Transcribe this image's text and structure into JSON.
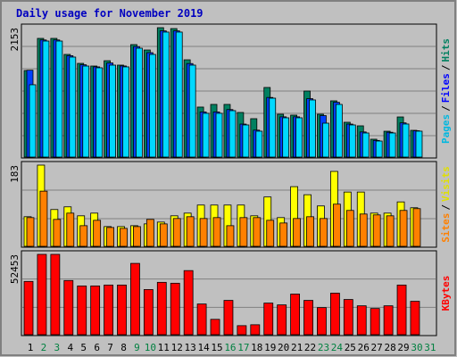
{
  "legend_separator": "/",
  "chart_data": [
    {
      "type": "bar",
      "title": "Daily usage for November 2019",
      "ylim": [
        0,
        2153
      ],
      "yticks": [
        2153
      ],
      "series": [
        {
          "name": "Hits",
          "color": "#008060",
          "text_color": "#008060",
          "values": [
            1445,
            1976,
            1976,
            1711,
            1563,
            1519,
            1607,
            1534,
            1873,
            1784,
            2153,
            2138,
            1622,
            841,
            885,
            885,
            752,
            649,
            1165,
            723,
            708,
            1106,
            723,
            944,
            590,
            531,
            310,
            442,
            678,
            457,
            null
          ]
        },
        {
          "name": "Files",
          "color": "#0040ff",
          "text_color": "#0000ff",
          "values": [
            1450,
            1950,
            1950,
            1690,
            1540,
            1505,
            1570,
            1520,
            1840,
            1740,
            2100,
            2100,
            1560,
            760,
            760,
            800,
            560,
            460,
            1000,
            680,
            680,
            980,
            700,
            920,
            560,
            430,
            290,
            425,
            580,
            450,
            null
          ]
        },
        {
          "name": "Pages",
          "color": "#00d8ff",
          "text_color": "#00b8e0",
          "values": [
            1210,
            1932,
            1932,
            1667,
            1519,
            1490,
            1534,
            1505,
            1814,
            1711,
            2080,
            2080,
            1534,
            738,
            738,
            782,
            546,
            443,
            988,
            664,
            664,
            959,
            575,
            885,
            546,
            413,
            280,
            413,
            561,
            443,
            null
          ]
        }
      ]
    },
    {
      "type": "bar",
      "ylim": [
        0,
        183
      ],
      "yticks": [
        183
      ],
      "series": [
        {
          "name": "Visits",
          "color": "#ffff00",
          "text_color": "#e0e000",
          "values": [
            68,
            183,
            84,
            90,
            70,
            76,
            46,
            46,
            48,
            52,
            56,
            70,
            76,
            94,
            94,
            94,
            94,
            70,
            112,
            66,
            135,
            117,
            92,
            169,
            123,
            123,
            76,
            76,
            101,
            88,
            null
          ]
        },
        {
          "name": "Sites",
          "color": "#ff8000",
          "text_color": "#ff8000",
          "values": [
            66,
            125,
            62,
            76,
            48,
            60,
            44,
            42,
            46,
            62,
            52,
            64,
            68,
            64,
            66,
            48,
            66,
            66,
            60,
            54,
            64,
            68,
            64,
            96,
            82,
            74,
            72,
            70,
            82,
            86,
            null
          ]
        }
      ]
    },
    {
      "type": "bar",
      "ylim": [
        0,
        52453
      ],
      "yticks": [
        52453
      ],
      "categories": [
        "1",
        "2",
        "3",
        "4",
        "5",
        "6",
        "7",
        "8",
        "9",
        "10",
        "11",
        "12",
        "13",
        "14",
        "15",
        "16",
        "17",
        "18",
        "19",
        "20",
        "21",
        "22",
        "23",
        "24",
        "25",
        "26",
        "27",
        "28",
        "29",
        "30",
        "31"
      ],
      "weekends": [
        2,
        3,
        9,
        10,
        16,
        17,
        23,
        24,
        30,
        31
      ],
      "weekend_color": "#008040",
      "series": [
        {
          "name": "KBytes",
          "color": "#ff0000",
          "text_color": "#ff0000",
          "values": [
            34970,
            52453,
            52453,
            35560,
            32060,
            32060,
            32640,
            32640,
            46630,
            29730,
            34390,
            33810,
            41970,
            20400,
            10490,
            22730,
            6410,
            6990,
            20980,
            19820,
            26810,
            22730,
            18070,
            27400,
            23310,
            19230,
            17490,
            19230,
            32640,
            22150,
            null
          ]
        }
      ]
    }
  ]
}
